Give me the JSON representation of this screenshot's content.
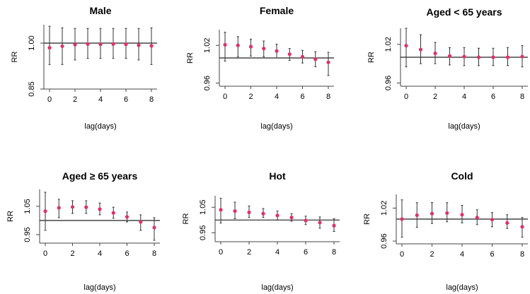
{
  "chart_data": [
    {
      "type": "scatter",
      "title": "Male",
      "xlabel": "lag(days)",
      "ylabel": "RR",
      "x": [
        0,
        1,
        2,
        3,
        4,
        5,
        6,
        7,
        8
      ],
      "xticks": [
        "0",
        "2",
        "4",
        "6",
        "8"
      ],
      "yticks": [
        "0.85",
        "1.00"
      ],
      "ylim": [
        0.85,
        1.06
      ],
      "reference_line": 1.0,
      "series": [
        {
          "values": [
            0.985,
            0.99,
            0.995,
            0.997,
            0.996,
            0.997,
            0.996,
            0.993,
            0.991
          ],
          "lower": [
            0.93,
            0.93,
            0.945,
            0.95,
            0.95,
            0.95,
            0.95,
            0.945,
            0.93
          ],
          "upper": [
            1.055,
            1.05,
            1.048,
            1.048,
            1.048,
            1.048,
            1.048,
            1.048,
            1.05
          ]
        }
      ],
      "point_color": "#e0306a",
      "ci_color": "#333333"
    },
    {
      "type": "scatter",
      "title": "Female",
      "xlabel": "lag(days)",
      "ylabel": "RR",
      "x": [
        0,
        1,
        2,
        3,
        4,
        5,
        6,
        7,
        8
      ],
      "xticks": [
        "0",
        "2",
        "4",
        "6",
        "8"
      ],
      "yticks": [
        "0.96",
        "1.02"
      ],
      "ylim": [
        0.955,
        1.045
      ],
      "reference_line": 1.0,
      "series": [
        {
          "values": [
            1.021,
            1.02,
            1.018,
            1.015,
            1.011,
            1.006,
            1.002,
            0.998,
            0.993
          ],
          "lower": [
            0.995,
            1.002,
            1.003,
            1.002,
            1.0,
            0.996,
            0.992,
            0.986,
            0.972
          ],
          "upper": [
            1.041,
            1.034,
            1.03,
            1.027,
            1.022,
            1.015,
            1.012,
            1.01,
            1.009
          ]
        }
      ],
      "point_color": "#e0306a",
      "ci_color": "#333333"
    },
    {
      "type": "scatter",
      "title": "Aged < 65 years",
      "xlabel": "lag(days)",
      "ylabel": "RR",
      "x": [
        0,
        1,
        2,
        3,
        4,
        5,
        6,
        7,
        8
      ],
      "xticks": [
        "0",
        "2",
        "4",
        "6",
        "8"
      ],
      "yticks": [
        "0.96",
        "1.02"
      ],
      "ylim": [
        0.955,
        1.045
      ],
      "reference_line": 1.0,
      "series": [
        {
          "values": [
            1.018,
            1.012,
            1.006,
            1.002,
            1.001,
            1.0,
            1.0,
            1.0,
            1.001
          ],
          "lower": [
            0.985,
            0.99,
            0.99,
            0.988,
            0.987,
            0.987,
            0.987,
            0.987,
            0.985
          ],
          "upper": [
            1.045,
            1.035,
            1.023,
            1.015,
            1.015,
            1.014,
            1.014,
            1.015,
            1.018
          ]
        }
      ],
      "point_color": "#e0306a",
      "ci_color": "#333333"
    },
    {
      "type": "scatter",
      "title": "Aged ≥ 65 years",
      "xlabel": "lag(days)",
      "ylabel": "RR",
      "x": [
        0,
        1,
        2,
        3,
        4,
        5,
        6,
        7,
        8
      ],
      "xticks": [
        "0",
        "2",
        "4",
        "6",
        "8"
      ],
      "yticks": [
        "0.95",
        "1.05"
      ],
      "ylim": [
        0.92,
        1.11
      ],
      "reference_line": 1.0,
      "series": [
        {
          "values": [
            1.033,
            1.045,
            1.048,
            1.047,
            1.04,
            1.027,
            1.013,
            0.995,
            0.975
          ],
          "lower": [
            0.965,
            1.01,
            1.025,
            1.025,
            1.02,
            1.008,
            0.995,
            0.965,
            0.93
          ],
          "upper": [
            1.1,
            1.075,
            1.07,
            1.07,
            1.062,
            1.047,
            1.03,
            1.02,
            1.01
          ]
        }
      ],
      "point_color": "#e0306a",
      "ci_color": "#333333"
    },
    {
      "type": "scatter",
      "title": "Hot",
      "xlabel": "lag(days)",
      "ylabel": "RR",
      "x": [
        0,
        1,
        2,
        3,
        4,
        5,
        6,
        7,
        8
      ],
      "xticks": [
        "0",
        "2",
        "4",
        "6",
        "8"
      ],
      "yticks": [
        "0.95",
        "1.05"
      ],
      "ylim": [
        0.915,
        1.095
      ],
      "reference_line": 1.0,
      "series": [
        {
          "values": [
            1.04,
            1.035,
            1.03,
            1.025,
            1.018,
            1.01,
            0.998,
            0.99,
            0.978
          ],
          "lower": [
            0.988,
            1.005,
            1.01,
            1.01,
            1.0,
            0.995,
            0.982,
            0.968,
            0.955
          ],
          "upper": [
            1.085,
            1.07,
            1.055,
            1.045,
            1.035,
            1.025,
            1.015,
            1.012,
            1.005
          ]
        }
      ],
      "point_color": "#e0306a",
      "ci_color": "#333333"
    },
    {
      "type": "scatter",
      "title": "Cold",
      "xlabel": "lag(days)",
      "ylabel": "RR",
      "x": [
        0,
        1,
        2,
        3,
        4,
        5,
        6,
        7,
        8
      ],
      "xticks": [
        "0",
        "2",
        "4",
        "6",
        "8"
      ],
      "yticks": [
        "0.96",
        "1.02"
      ],
      "ylim": [
        0.955,
        1.045
      ],
      "reference_line": 1.0,
      "series": [
        {
          "values": [
            1.0,
            1.007,
            1.01,
            1.011,
            1.008,
            1.003,
            0.999,
            0.993,
            0.986
          ],
          "lower": [
            0.967,
            0.985,
            0.992,
            0.995,
            0.993,
            0.99,
            0.986,
            0.983,
            0.967
          ],
          "upper": [
            1.035,
            1.03,
            1.03,
            1.03,
            1.025,
            1.017,
            1.012,
            1.008,
            1.003
          ]
        }
      ],
      "point_color": "#e0306a",
      "ci_color": "#333333"
    }
  ]
}
